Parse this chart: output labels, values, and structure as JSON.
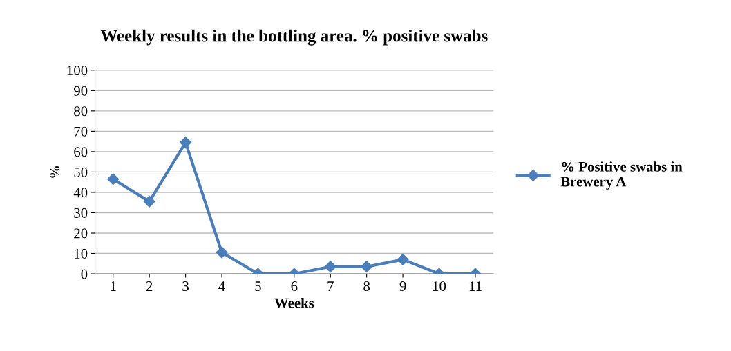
{
  "chart_data": {
    "type": "line",
    "title": "Weekly results in the bottling area. % positive swabs",
    "xlabel": "Weeks",
    "ylabel": "%",
    "categories": [
      "1",
      "2",
      "3",
      "4",
      "5",
      "6",
      "7",
      "8",
      "9",
      "10",
      "11"
    ],
    "series": [
      {
        "name": "% Positive swabs in\nBrewery A",
        "color": "#4a7ebb",
        "values": [
          46.5,
          35.5,
          64.5,
          10.5,
          0,
          0,
          3.5,
          3.5,
          7,
          0,
          0
        ]
      }
    ],
    "ylim": [
      0,
      100
    ],
    "yticks": [
      0,
      10,
      20,
      30,
      40,
      50,
      60,
      70,
      80,
      90,
      100
    ],
    "grid": "y",
    "legend": "right",
    "marker": "diamond",
    "line_style": "solid"
  }
}
